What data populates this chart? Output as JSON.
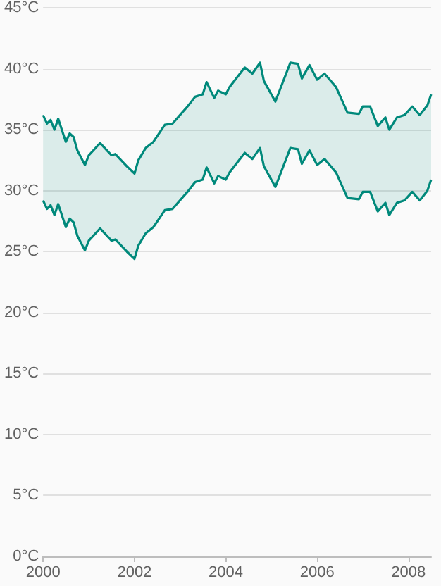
{
  "chart_data": {
    "type": "area",
    "x": [
      "2000-01",
      "2000-02",
      "2000-03",
      "2000-04",
      "2000-05",
      "2000-07",
      "2000-08",
      "2000-09",
      "2000-10",
      "2000-12",
      "2001-01",
      "2001-04",
      "2001-07",
      "2001-08",
      "2001-11",
      "2002-01",
      "2002-02",
      "2002-04",
      "2002-06",
      "2002-09",
      "2002-11",
      "2003-03",
      "2003-05",
      "2003-07",
      "2003-08",
      "2003-10",
      "2003-11",
      "2004-01",
      "2004-02",
      "2004-06",
      "2004-08",
      "2004-10",
      "2004-11",
      "2005-02",
      "2005-06",
      "2005-08",
      "2005-09",
      "2005-11",
      "2006-01",
      "2006-03",
      "2006-06",
      "2006-09",
      "2006-12",
      "2007-01",
      "2007-03",
      "2007-05",
      "2007-07",
      "2007-08",
      "2007-10",
      "2007-12",
      "2008-02",
      "2008-04",
      "2008-06",
      "2008-07"
    ],
    "series": [
      {
        "color": "#00897b",
        "values": [
          36.2,
          35.5,
          35.8,
          35.0,
          35.9,
          34.0,
          34.7,
          34.4,
          33.3,
          32.1,
          32.9,
          33.9,
          32.9,
          33.0,
          32.0,
          31.4,
          32.5,
          33.5,
          34.0,
          35.4,
          35.5,
          36.9,
          37.7,
          37.9,
          38.9,
          37.6,
          38.2,
          37.9,
          38.5,
          40.1,
          39.6,
          40.5,
          39.0,
          37.3,
          40.5,
          40.4,
          39.2,
          40.3,
          39.1,
          39.6,
          38.5,
          36.4,
          36.3,
          36.9,
          36.9,
          35.3,
          36.0,
          35.0,
          36.0,
          36.2,
          36.9,
          36.2,
          37.0,
          37.9
        ]
      },
      {
        "type": "line",
        "color": "#00897b",
        "values": [
          29.2,
          28.5,
          28.8,
          28.0,
          28.9,
          27.0,
          27.7,
          27.4,
          26.3,
          25.1,
          25.9,
          26.9,
          25.9,
          26.0,
          25.0,
          24.4,
          25.5,
          26.5,
          27.0,
          28.4,
          28.5,
          29.9,
          30.7,
          30.9,
          31.9,
          30.6,
          31.2,
          30.9,
          31.5,
          33.1,
          32.6,
          33.5,
          32.0,
          30.3,
          33.5,
          33.4,
          32.2,
          33.3,
          32.1,
          32.6,
          31.5,
          29.4,
          29.3,
          29.9,
          29.9,
          28.3,
          29.0,
          28.0,
          29.0,
          29.2,
          29.9,
          29.2,
          30.0,
          30.9
        ]
      }
    ],
    "xlim": [
      "2000-01",
      "2008-07"
    ],
    "xticks": [
      "2000",
      "2002",
      "2004",
      "2006",
      "2008"
    ],
    "ylim": [
      0,
      45
    ],
    "yticks": [
      {
        "value": 0,
        "label": "0°C"
      },
      {
        "value": 5,
        "label": "5°C"
      },
      {
        "value": 10,
        "label": "10°C"
      },
      {
        "value": 15,
        "label": "15°C"
      },
      {
        "value": 20,
        "label": "20°C"
      },
      {
        "value": 25,
        "label": "25°C"
      },
      {
        "value": 30,
        "label": "30°C"
      },
      {
        "value": 35,
        "label": "35°C"
      },
      {
        "value": 40,
        "label": "40°C"
      },
      {
        "value": 45,
        "label": "45°C"
      }
    ],
    "grid": "y"
  }
}
